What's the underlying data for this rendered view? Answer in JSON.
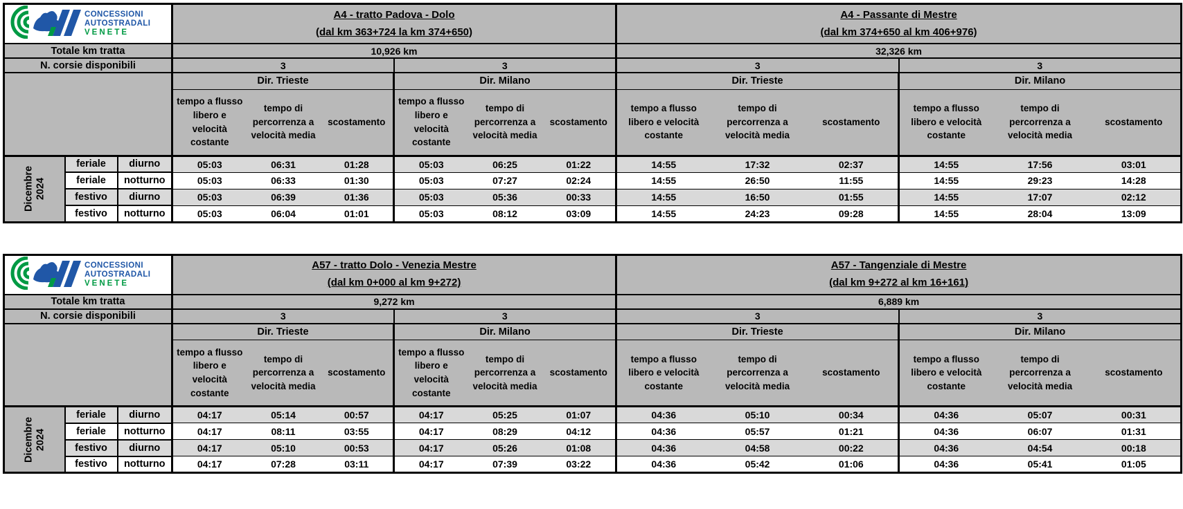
{
  "brand": {
    "name_line1": "CONCESSIONI",
    "name_line2": "AUTOSTRADALI",
    "name_line3": "VENETE"
  },
  "colors": {
    "brand_green": "#009a44",
    "brand_blue": "#2057a7",
    "header_grey": "#b9b9b9",
    "stripe_grey": "#d9d9d9",
    "border_black": "#000000"
  },
  "shared": {
    "total_km_label": "Totale km tratta",
    "lanes_label": "N. corsie disponibili",
    "period_line1": "Dicembre",
    "period_line2": "2024",
    "col_headers": [
      "tempo a flusso libero e velocità costante",
      "tempo di percorrenza a velocità media",
      "scostamento"
    ],
    "row_labels": [
      [
        "feriale",
        "diurno"
      ],
      [
        "feriale",
        "notturno"
      ],
      [
        "festivo",
        "diurno"
      ],
      [
        "festivo",
        "notturno"
      ]
    ]
  },
  "tables": [
    {
      "sections": [
        {
          "title": "A4 - tratto Padova - Dolo",
          "subtitle": "(dal km 363+724 la km 374+650)",
          "total_km": "10,926 km",
          "lanes": [
            "3",
            "3"
          ],
          "directions": [
            "Dir. Trieste",
            "Dir. Milano"
          ]
        },
        {
          "title": "A4 - Passante di Mestre",
          "subtitle": "(dal km 374+650 al km 406+976)",
          "total_km": "32,326 km",
          "lanes": [
            "3",
            "3"
          ],
          "directions": [
            "Dir. Trieste",
            "Dir. Milano"
          ]
        }
      ],
      "rows": [
        [
          "05:03",
          "06:31",
          "01:28",
          "05:03",
          "06:25",
          "01:22",
          "14:55",
          "17:32",
          "02:37",
          "14:55",
          "17:56",
          "03:01"
        ],
        [
          "05:03",
          "06:33",
          "01:30",
          "05:03",
          "07:27",
          "02:24",
          "14:55",
          "26:50",
          "11:55",
          "14:55",
          "29:23",
          "14:28"
        ],
        [
          "05:03",
          "06:39",
          "01:36",
          "05:03",
          "05:36",
          "00:33",
          "14:55",
          "16:50",
          "01:55",
          "14:55",
          "17:07",
          "02:12"
        ],
        [
          "05:03",
          "06:04",
          "01:01",
          "05:03",
          "08:12",
          "03:09",
          "14:55",
          "24:23",
          "09:28",
          "14:55",
          "28:04",
          "13:09"
        ]
      ]
    },
    {
      "sections": [
        {
          "title": "A57 - tratto Dolo - Venezia Mestre",
          "subtitle": "(dal km 0+000 al km 9+272)",
          "total_km": "9,272 km",
          "lanes": [
            "3",
            "3"
          ],
          "directions": [
            "Dir. Trieste",
            "Dir. Milano"
          ]
        },
        {
          "title": "A57 - Tangenziale di Mestre",
          "subtitle": "(dal km 9+272 al km 16+161)",
          "total_km": "6,889 km",
          "lanes": [
            "3",
            "3"
          ],
          "directions": [
            "Dir. Trieste",
            "Dir. Milano"
          ]
        }
      ],
      "rows": [
        [
          "04:17",
          "05:14",
          "00:57",
          "04:17",
          "05:25",
          "01:07",
          "04:36",
          "05:10",
          "00:34",
          "04:36",
          "05:07",
          "00:31"
        ],
        [
          "04:17",
          "08:11",
          "03:55",
          "04:17",
          "08:29",
          "04:12",
          "04:36",
          "05:57",
          "01:21",
          "04:36",
          "06:07",
          "01:31"
        ],
        [
          "04:17",
          "05:10",
          "00:53",
          "04:17",
          "05:26",
          "01:08",
          "04:36",
          "04:58",
          "00:22",
          "04:36",
          "04:54",
          "00:18"
        ],
        [
          "04:17",
          "07:28",
          "03:11",
          "04:17",
          "07:39",
          "03:22",
          "04:36",
          "05:42",
          "01:06",
          "04:36",
          "05:41",
          "01:05"
        ]
      ]
    }
  ]
}
